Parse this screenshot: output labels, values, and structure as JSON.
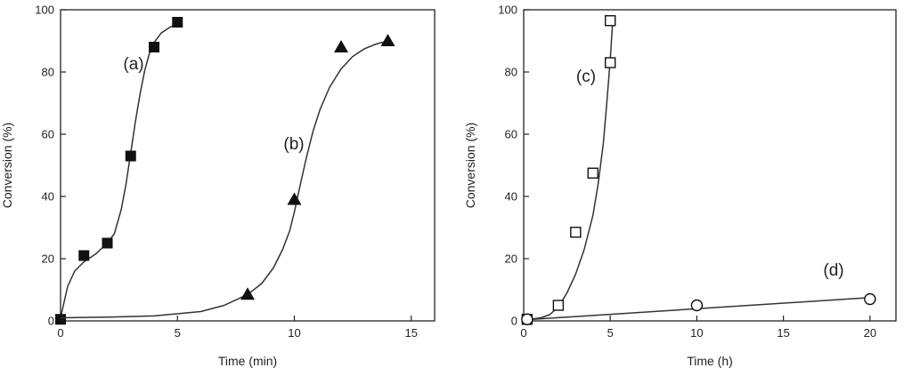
{
  "chart_data": [
    {
      "type": "scatter",
      "xlabel": "Time (min)",
      "ylabel": "Conversion (%)",
      "xlim": [
        0,
        16
      ],
      "ylim": [
        0,
        100
      ],
      "xticks": [
        0,
        5,
        10,
        15
      ],
      "yticks": [
        0,
        20,
        40,
        60,
        80,
        100
      ],
      "grid": false,
      "series": [
        {
          "annotation": "(a)",
          "marker": "filled-square",
          "points": [
            [
              0,
              0.5
            ],
            [
              1,
              21
            ],
            [
              2,
              25
            ],
            [
              3,
              53
            ],
            [
              4,
              88
            ],
            [
              5,
              96
            ]
          ],
          "fit": [
            [
              0,
              1
            ],
            [
              0.3,
              11
            ],
            [
              0.6,
              16
            ],
            [
              1,
              19
            ],
            [
              1.5,
              21.5
            ],
            [
              2,
              25
            ],
            [
              2.3,
              28
            ],
            [
              2.6,
              36
            ],
            [
              2.8,
              44
            ],
            [
              3,
              54
            ],
            [
              3.2,
              64
            ],
            [
              3.4,
              73
            ],
            [
              3.6,
              80.5
            ],
            [
              3.8,
              86
            ],
            [
              4,
              89.5
            ],
            [
              4.3,
              92.5
            ],
            [
              4.7,
              94.5
            ],
            [
              5,
              95.5
            ]
          ]
        },
        {
          "annotation": "(b)",
          "marker": "filled-triangle",
          "points": [
            [
              8,
              8.5
            ],
            [
              10,
              39
            ],
            [
              12,
              88
            ],
            [
              14,
              90
            ]
          ],
          "fit": [
            [
              0,
              1
            ],
            [
              2,
              1.2
            ],
            [
              4,
              1.6
            ],
            [
              6,
              3
            ],
            [
              7,
              5
            ],
            [
              8,
              8.5
            ],
            [
              8.6,
              12
            ],
            [
              9.1,
              17
            ],
            [
              9.5,
              23
            ],
            [
              9.8,
              29
            ],
            [
              10,
              35
            ],
            [
              10.2,
              42
            ],
            [
              10.5,
              52
            ],
            [
              10.8,
              61
            ],
            [
              11.1,
              68
            ],
            [
              11.5,
              75
            ],
            [
              12,
              81
            ],
            [
              12.5,
              85
            ],
            [
              13,
              87.5
            ],
            [
              13.5,
              89
            ],
            [
              14,
              90
            ]
          ]
        }
      ]
    },
    {
      "type": "scatter",
      "xlabel": "Time (h)",
      "ylabel": "Conversion (%)",
      "xlim": [
        0,
        21.5
      ],
      "ylim": [
        0,
        100
      ],
      "xticks": [
        0,
        5,
        10,
        15,
        20
      ],
      "yticks": [
        0,
        20,
        40,
        60,
        80,
        100
      ],
      "grid": false,
      "series": [
        {
          "annotation": "(c)",
          "marker": "open-square",
          "points": [
            [
              0.2,
              0.5
            ],
            [
              2,
              5
            ],
            [
              3,
              28.5
            ],
            [
              4,
              47.5
            ],
            [
              5,
              83
            ],
            [
              5,
              96.5
            ]
          ],
          "fit": [
            [
              0,
              0.3
            ],
            [
              0.5,
              0.6
            ],
            [
              1,
              1
            ],
            [
              1.5,
              2
            ],
            [
              2,
              4.5
            ],
            [
              2.5,
              9
            ],
            [
              3,
              15
            ],
            [
              3.5,
              23
            ],
            [
              4,
              34
            ],
            [
              4.3,
              44
            ],
            [
              4.6,
              57
            ],
            [
              4.8,
              70
            ],
            [
              5,
              84
            ],
            [
              5.1,
              93
            ],
            [
              5.15,
              97
            ]
          ]
        },
        {
          "annotation": "(d)",
          "marker": "open-circle",
          "points": [
            [
              0.2,
              0.5
            ],
            [
              10,
              5
            ],
            [
              20,
              7
            ]
          ],
          "fit": [
            [
              0,
              0.3
            ],
            [
              20,
              7.5
            ]
          ]
        }
      ]
    }
  ]
}
